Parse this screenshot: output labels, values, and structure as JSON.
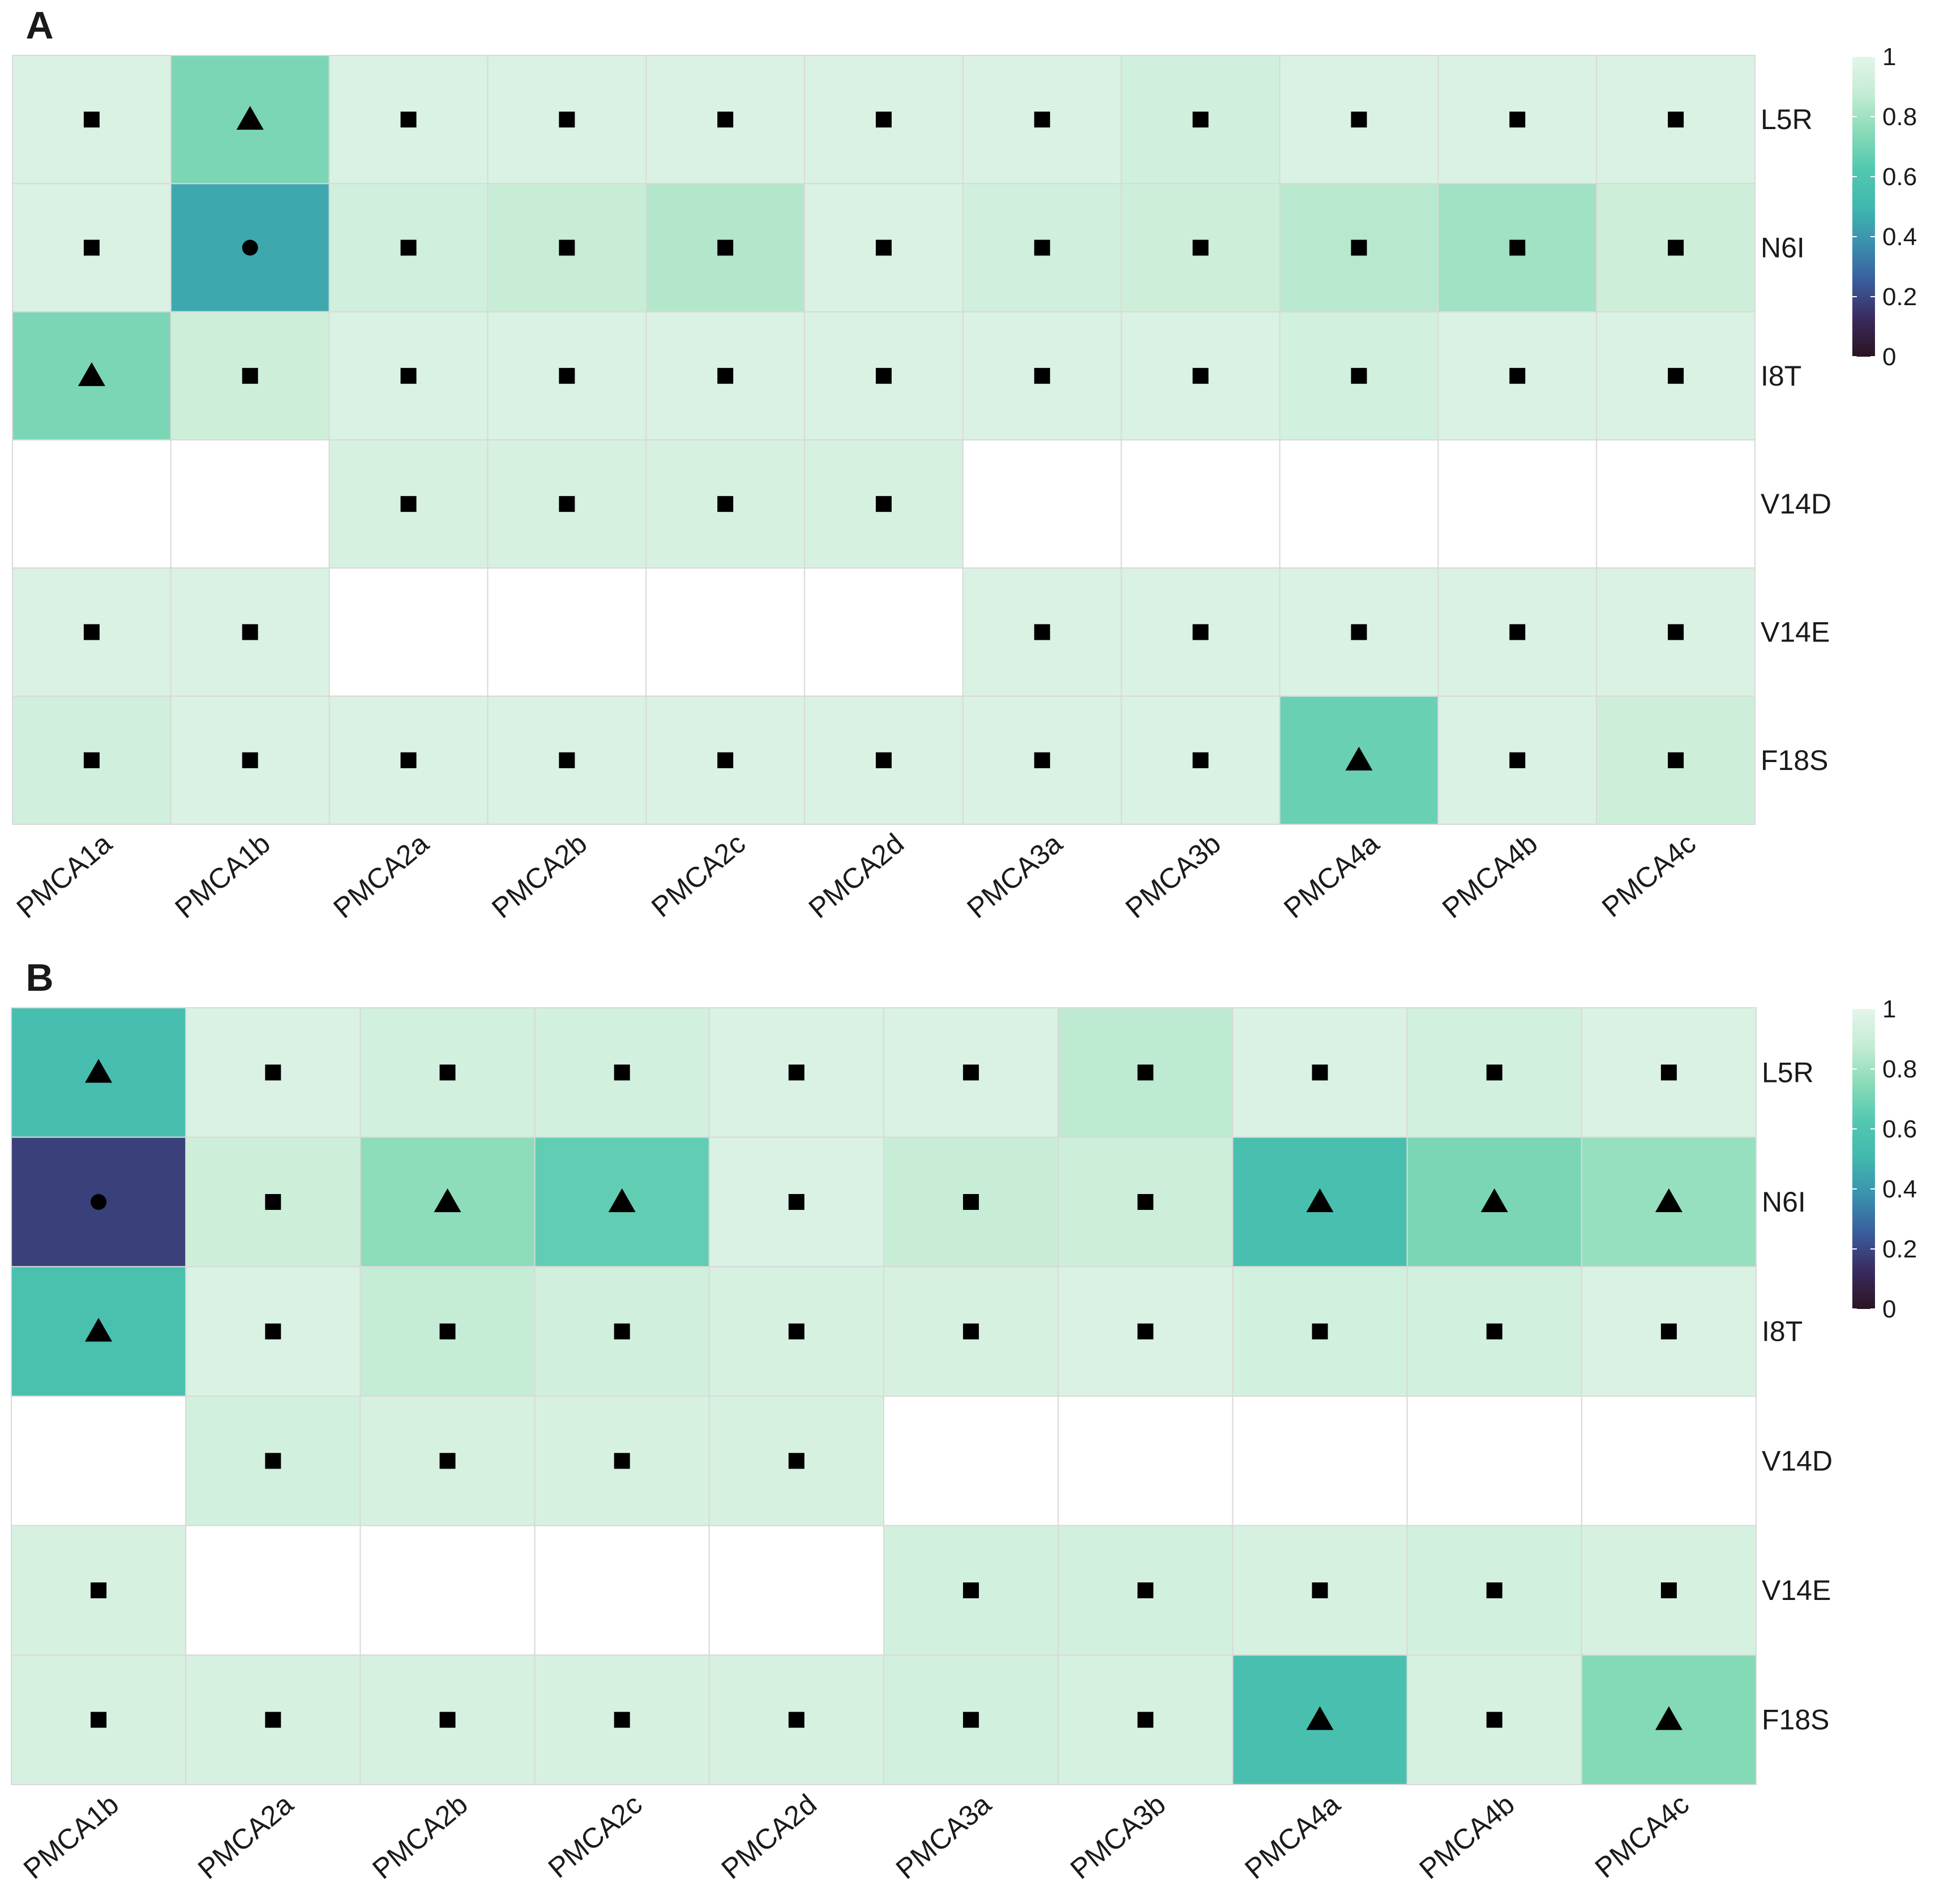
{
  "colors": {
    "scale": [
      "#2a1420",
      "#3a2a5e",
      "#3a5c9c",
      "#3a8fae",
      "#40b8ae",
      "#52c8b0",
      "#88dbb8",
      "#c4ecd4",
      "#e4f5ea"
    ],
    "empty": "#ffffff",
    "grid": "#d9d9d9",
    "marker": "#000000"
  },
  "chart_data": [
    {
      "type": "heatmap",
      "panel_label": "A",
      "rows": [
        "L5R",
        "N6I",
        "I8T",
        "V14D",
        "V14E",
        "F18S"
      ],
      "columns": [
        "PMCA1a",
        "PMCA1b",
        "PMCA2a",
        "PMCA2b",
        "PMCA2c",
        "PMCA2d",
        "PMCA3a",
        "PMCA3b",
        "PMCA4a",
        "PMCA4b",
        "PMCA4c"
      ],
      "values": [
        [
          0.96,
          0.72,
          0.96,
          0.96,
          0.96,
          0.96,
          0.96,
          0.92,
          0.96,
          0.96,
          0.96
        ],
        [
          0.96,
          0.45,
          0.92,
          0.89,
          0.84,
          0.96,
          0.92,
          0.91,
          0.85,
          0.8,
          0.91
        ],
        [
          0.72,
          0.91,
          0.96,
          0.96,
          0.96,
          0.96,
          0.96,
          0.96,
          0.93,
          0.96,
          0.96
        ],
        [
          null,
          null,
          0.95,
          0.95,
          0.95,
          0.95,
          null,
          null,
          null,
          null,
          null
        ],
        [
          0.96,
          0.96,
          null,
          null,
          null,
          null,
          0.96,
          0.96,
          0.96,
          0.96,
          0.96
        ],
        [
          0.92,
          0.96,
          0.96,
          0.96,
          0.96,
          0.96,
          0.96,
          0.96,
          0.68,
          0.96,
          0.91
        ]
      ],
      "markers": [
        [
          "square",
          "triangle",
          "square",
          "square",
          "square",
          "square",
          "square",
          "square",
          "square",
          "square",
          "square"
        ],
        [
          "square",
          "circle",
          "square",
          "square",
          "square",
          "square",
          "square",
          "square",
          "square",
          "square",
          "square"
        ],
        [
          "triangle",
          "square",
          "square",
          "square",
          "square",
          "square",
          "square",
          "square",
          "square",
          "square",
          "square"
        ],
        [
          null,
          null,
          "square",
          "square",
          "square",
          "square",
          null,
          null,
          null,
          null,
          null
        ],
        [
          "square",
          "square",
          null,
          null,
          null,
          null,
          "square",
          "square",
          "square",
          "square",
          "square"
        ],
        [
          "square",
          "square",
          "square",
          "square",
          "square",
          "square",
          "square",
          "square",
          "triangle",
          "square",
          "square"
        ]
      ],
      "legend": {
        "ticks": [
          "1",
          "0.8",
          "0.6",
          "0.4",
          "0.2",
          "0"
        ],
        "range": [
          0,
          1
        ]
      }
    },
    {
      "type": "heatmap",
      "panel_label": "B",
      "rows": [
        "L5R",
        "N6I",
        "I8T",
        "V14D",
        "V14E",
        "F18S"
      ],
      "columns": [
        "PMCA1b",
        "PMCA2a",
        "PMCA2b",
        "PMCA2c",
        "PMCA2d",
        "PMCA3a",
        "PMCA3b",
        "PMCA4a",
        "PMCA4b",
        "PMCA4c"
      ],
      "values": [
        [
          0.55,
          0.96,
          0.93,
          0.93,
          0.96,
          0.96,
          0.86,
          0.96,
          0.93,
          0.96
        ],
        [
          0.18,
          0.91,
          0.76,
          0.66,
          0.96,
          0.89,
          0.91,
          0.56,
          0.72,
          0.78
        ],
        [
          0.57,
          0.96,
          0.88,
          0.92,
          0.95,
          0.95,
          0.96,
          0.93,
          0.93,
          0.96
        ],
        [
          null,
          0.93,
          0.95,
          0.95,
          0.95,
          null,
          null,
          null,
          null,
          null
        ],
        [
          0.95,
          null,
          null,
          null,
          null,
          0.93,
          0.93,
          0.95,
          0.93,
          0.95
        ],
        [
          0.95,
          0.95,
          0.95,
          0.95,
          0.95,
          0.93,
          0.94,
          0.56,
          0.95,
          0.74
        ]
      ],
      "markers": [
        [
          "triangle",
          "square",
          "square",
          "square",
          "square",
          "square",
          "square",
          "square",
          "square",
          "square"
        ],
        [
          "circle",
          "square",
          "triangle",
          "triangle",
          "square",
          "square",
          "square",
          "triangle",
          "triangle",
          "triangle"
        ],
        [
          "triangle",
          "square",
          "square",
          "square",
          "square",
          "square",
          "square",
          "square",
          "square",
          "square"
        ],
        [
          null,
          "square",
          "square",
          "square",
          "square",
          null,
          null,
          null,
          null,
          null
        ],
        [
          "square",
          null,
          null,
          null,
          null,
          "square",
          "square",
          "square",
          "square",
          "square"
        ],
        [
          "square",
          "square",
          "square",
          "square",
          "square",
          "square",
          "square",
          "triangle",
          "square",
          "triangle"
        ]
      ],
      "legend": {
        "ticks": [
          "1",
          "0.8",
          "0.6",
          "0.4",
          "0.2",
          "0"
        ],
        "range": [
          0,
          1
        ]
      }
    }
  ]
}
